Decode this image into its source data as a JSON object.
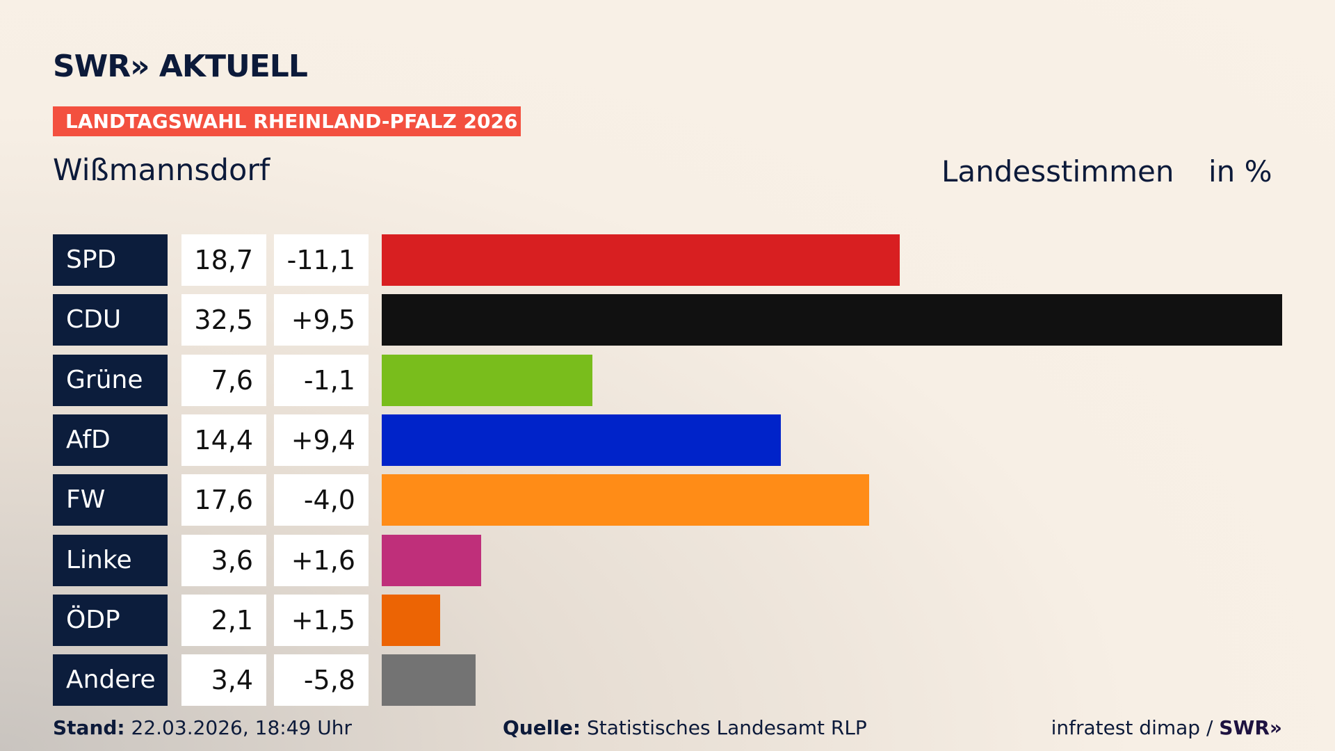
{
  "header": {
    "logo": "SWR» AKTUELL",
    "banner": "LANDTAGSWAHL RHEINLAND-PFALZ 2026",
    "place": "Wißmannsdorf",
    "measure": "Landesstimmen",
    "unit": "in %"
  },
  "chart_data": {
    "type": "bar",
    "orientation": "horizontal",
    "categories": [
      "SPD",
      "CDU",
      "Grüne",
      "AfD",
      "FW",
      "Linke",
      "ÖDP",
      "Andere"
    ],
    "values": [
      18.7,
      32.5,
      7.6,
      14.4,
      17.6,
      3.6,
      2.1,
      3.4
    ],
    "value_labels": [
      "18,7",
      "32,5",
      "7,6",
      "14,4",
      "17,6",
      "3,6",
      "2,1",
      "3,4"
    ],
    "diff_labels": [
      "-11,1",
      "+9,5",
      "-1,1",
      "+9,4",
      "-4,0",
      "+1,6",
      "+1,5",
      "-5,8"
    ],
    "colors": [
      "#d81f21",
      "#111111",
      "#79bd1c",
      "#0023c9",
      "#ff8c17",
      "#bf2f7a",
      "#ec6404",
      "#737373"
    ],
    "xlim": [
      0,
      32.5
    ],
    "grid": false
  },
  "footer": {
    "stand_label": "Stand:",
    "stand_value": "22.03.2026, 18:49 Uhr",
    "source_label": "Quelle:",
    "source_value": "Statistisches Landesamt RLP",
    "credit": "infratest dimap / ",
    "credit_logo": "SWR»"
  }
}
